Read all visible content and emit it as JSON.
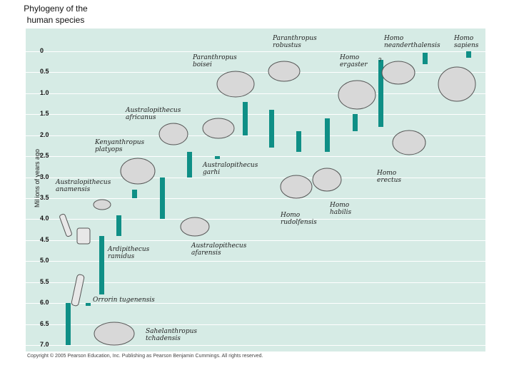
{
  "title": "Phylogeny of the human species",
  "y_axis_label": "Millions of years ago",
  "ticks": [
    "0",
    "0.5",
    "1.0",
    "1.5",
    "2.0",
    "2.5",
    "3.0",
    "3.5",
    "4.0",
    "4.5",
    "5.0",
    "5.5",
    "6.0",
    "6.5",
    "7.0"
  ],
  "question_mark": "?",
  "species": [
    {
      "name": "Paranthropus robustus",
      "from": 1.2,
      "to": 2.0
    },
    {
      "name": "Homo neanderthalensis",
      "from": 0.03,
      "to": 0.3
    },
    {
      "name": "Homo sapiens",
      "from": 0.0,
      "to": 0.15
    },
    {
      "name": "Paranthropus boisei",
      "from": 1.4,
      "to": 2.3
    },
    {
      "name": "Homo ergaster",
      "from": 1.5,
      "to": 1.9
    },
    {
      "name": "Australopithecus africanus",
      "from": 2.4,
      "to": 3.0
    },
    {
      "name": "Kenyanthropus platyops",
      "from": 3.5,
      "to": 3.3
    },
    {
      "name": "Australopithecus garhi",
      "from": 2.5,
      "to": 2.5
    },
    {
      "name": "Homo erectus",
      "from": 0.2,
      "to": 1.8
    },
    {
      "name": "Australopithecus anamensis",
      "from": 3.9,
      "to": 4.4
    },
    {
      "name": "Homo rudolfensis",
      "from": 1.9,
      "to": 2.4
    },
    {
      "name": "Homo habilis",
      "from": 1.6,
      "to": 2.4
    },
    {
      "name": "Ardipithecus ramidus",
      "from": 4.4,
      "to": 5.8
    },
    {
      "name": "Australopithecus afarensis",
      "from": 3.0,
      "to": 4.0
    },
    {
      "name": "Orrorin tugenensis",
      "from": 6.0,
      "to": 6.0
    },
    {
      "name": "Sahelanthropus tchadensis",
      "from": 6.0,
      "to": 7.0
    }
  ],
  "copyright": "Copyright © 2005 Pearson Education, Inc. Publishing as Pearson Benjamin Cummings. All rights reserved."
}
